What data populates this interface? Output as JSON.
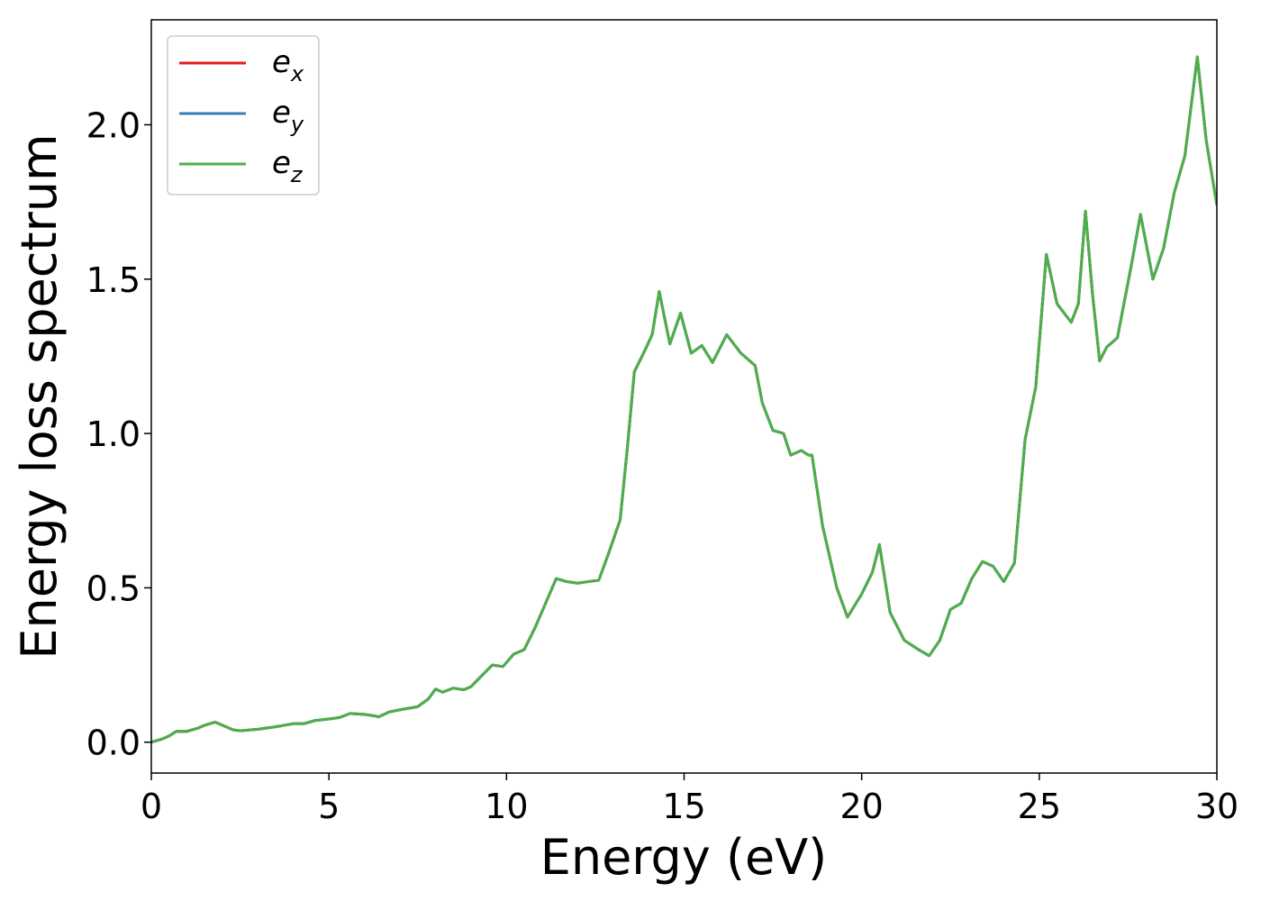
{
  "chart_data": {
    "type": "line",
    "xlabel": "Energy (eV)",
    "ylabel": "Energy loss spectrum",
    "xlim": [
      0,
      30
    ],
    "ylim": [
      -0.1,
      2.34
    ],
    "xticks": [
      0,
      5,
      10,
      15,
      20,
      25,
      30
    ],
    "yticks": [
      {
        "value": 0,
        "label": "0.0"
      },
      0.5,
      {
        "value": 1,
        "label": "1.0"
      },
      1.5,
      {
        "value": 2,
        "label": "2.0"
      }
    ],
    "legend": "upper left",
    "x": [
      0,
      0.3,
      0.5,
      0.7,
      1.0,
      1.3,
      1.5,
      1.8,
      2.0,
      2.3,
      2.5,
      3.0,
      3.5,
      4.0,
      4.3,
      4.6,
      5.0,
      5.3,
      5.6,
      6.0,
      6.3,
      6.4,
      6.7,
      7.0,
      7.5,
      7.8,
      8.0,
      8.2,
      8.5,
      8.8,
      9.0,
      9.3,
      9.6,
      9.9,
      10.2,
      10.5,
      10.8,
      11.1,
      11.4,
      11.7,
      12.0,
      12.3,
      12.6,
      12.9,
      13.2,
      13.4,
      13.6,
      13.9,
      14.1,
      14.3,
      14.6,
      14.9,
      15.2,
      15.5,
      15.8,
      16.2,
      16.6,
      17.0,
      17.2,
      17.5,
      17.8,
      18.0,
      18.3,
      18.5,
      18.6,
      18.9,
      19.3,
      19.6,
      20.0,
      20.3,
      20.5,
      20.8,
      21.2,
      21.6,
      21.9,
      22.2,
      22.5,
      22.8,
      23.1,
      23.4,
      23.7,
      24.0,
      24.3,
      24.6,
      24.9,
      25.2,
      25.5,
      25.9,
      26.1,
      26.3,
      26.5,
      26.7,
      26.9,
      27.2,
      27.6,
      27.85,
      28.0,
      28.2,
      28.5,
      28.8,
      29.1,
      29.45,
      29.7,
      30.0
    ],
    "series": [
      {
        "name": "e_x",
        "color": "#e41a1c",
        "values": [
          0.0,
          0.01,
          0.02,
          0.035,
          0.035,
          0.045,
          0.055,
          0.065,
          0.055,
          0.04,
          0.037,
          0.042,
          0.05,
          0.06,
          0.06,
          0.07,
          0.075,
          0.08,
          0.093,
          0.09,
          0.085,
          0.082,
          0.098,
          0.105,
          0.115,
          0.14,
          0.172,
          0.162,
          0.175,
          0.17,
          0.18,
          0.215,
          0.25,
          0.245,
          0.285,
          0.3,
          0.37,
          0.45,
          0.53,
          0.52,
          0.515,
          0.52,
          0.525,
          0.62,
          0.72,
          0.95,
          1.2,
          1.27,
          1.32,
          1.46,
          1.29,
          1.39,
          1.26,
          1.285,
          1.23,
          1.32,
          1.26,
          1.22,
          1.1,
          1.01,
          1.0,
          0.93,
          0.945,
          0.93,
          0.93,
          0.7,
          0.5,
          0.405,
          0.48,
          0.55,
          0.64,
          0.42,
          0.33,
          0.3,
          0.28,
          0.33,
          0.43,
          0.45,
          0.53,
          0.585,
          0.57,
          0.52,
          0.58,
          0.98,
          1.15,
          1.58,
          1.42,
          1.36,
          1.42,
          1.72,
          1.45,
          1.235,
          1.28,
          1.31,
          1.55,
          1.71,
          1.62,
          1.5,
          1.6,
          1.78,
          1.9,
          2.22,
          1.95,
          1.74
        ]
      },
      {
        "name": "e_y",
        "color": "#377eb8",
        "values": [
          0.0,
          0.01,
          0.02,
          0.035,
          0.035,
          0.045,
          0.055,
          0.065,
          0.055,
          0.04,
          0.037,
          0.042,
          0.05,
          0.06,
          0.06,
          0.07,
          0.075,
          0.08,
          0.093,
          0.09,
          0.085,
          0.082,
          0.098,
          0.105,
          0.115,
          0.14,
          0.172,
          0.162,
          0.175,
          0.17,
          0.18,
          0.215,
          0.25,
          0.245,
          0.285,
          0.3,
          0.37,
          0.45,
          0.53,
          0.52,
          0.515,
          0.52,
          0.525,
          0.62,
          0.72,
          0.95,
          1.2,
          1.27,
          1.32,
          1.46,
          1.29,
          1.39,
          1.26,
          1.285,
          1.23,
          1.32,
          1.26,
          1.22,
          1.1,
          1.01,
          1.0,
          0.93,
          0.945,
          0.93,
          0.93,
          0.7,
          0.5,
          0.405,
          0.48,
          0.55,
          0.64,
          0.42,
          0.33,
          0.3,
          0.28,
          0.33,
          0.43,
          0.45,
          0.53,
          0.585,
          0.57,
          0.52,
          0.58,
          0.98,
          1.15,
          1.58,
          1.42,
          1.36,
          1.42,
          1.72,
          1.45,
          1.235,
          1.28,
          1.31,
          1.55,
          1.71,
          1.62,
          1.5,
          1.6,
          1.78,
          1.9,
          2.22,
          1.95,
          1.74
        ]
      },
      {
        "name": "e_z",
        "color": "#4daf4a",
        "values": [
          0.0,
          0.01,
          0.02,
          0.035,
          0.035,
          0.045,
          0.055,
          0.065,
          0.055,
          0.04,
          0.037,
          0.042,
          0.05,
          0.06,
          0.06,
          0.07,
          0.075,
          0.08,
          0.093,
          0.09,
          0.085,
          0.082,
          0.098,
          0.105,
          0.115,
          0.14,
          0.172,
          0.162,
          0.175,
          0.17,
          0.18,
          0.215,
          0.25,
          0.245,
          0.285,
          0.3,
          0.37,
          0.45,
          0.53,
          0.52,
          0.515,
          0.52,
          0.525,
          0.62,
          0.72,
          0.95,
          1.2,
          1.27,
          1.32,
          1.46,
          1.29,
          1.39,
          1.26,
          1.285,
          1.23,
          1.32,
          1.26,
          1.22,
          1.1,
          1.01,
          1.0,
          0.93,
          0.945,
          0.93,
          0.93,
          0.7,
          0.5,
          0.405,
          0.48,
          0.55,
          0.64,
          0.42,
          0.33,
          0.3,
          0.28,
          0.33,
          0.43,
          0.45,
          0.53,
          0.585,
          0.57,
          0.52,
          0.58,
          0.98,
          1.15,
          1.58,
          1.42,
          1.36,
          1.42,
          1.72,
          1.45,
          1.235,
          1.28,
          1.31,
          1.55,
          1.71,
          1.62,
          1.5,
          1.6,
          1.78,
          1.9,
          2.22,
          1.95,
          1.74
        ]
      }
    ]
  }
}
